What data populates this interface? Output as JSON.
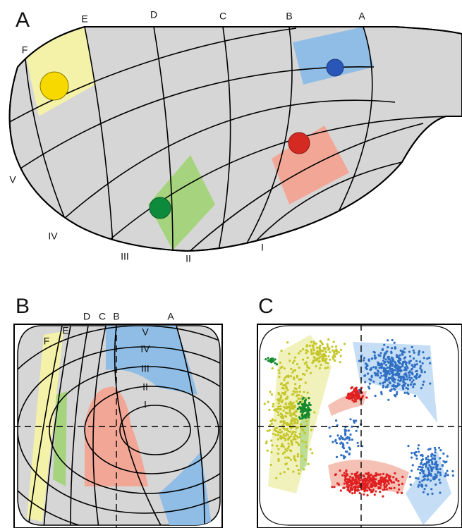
{
  "panels": [
    {
      "label": "A",
      "columns": [
        "A",
        "B",
        "C",
        "D",
        "E",
        "F"
      ],
      "rows": [
        "I",
        "II",
        "III",
        "IV",
        "V"
      ]
    },
    {
      "label": "B",
      "columns": [
        "A",
        "B",
        "C",
        "D",
        "E",
        "F"
      ],
      "rows": [
        "I",
        "II",
        "III",
        "IV",
        "V"
      ]
    },
    {
      "label": "C"
    }
  ]
}
